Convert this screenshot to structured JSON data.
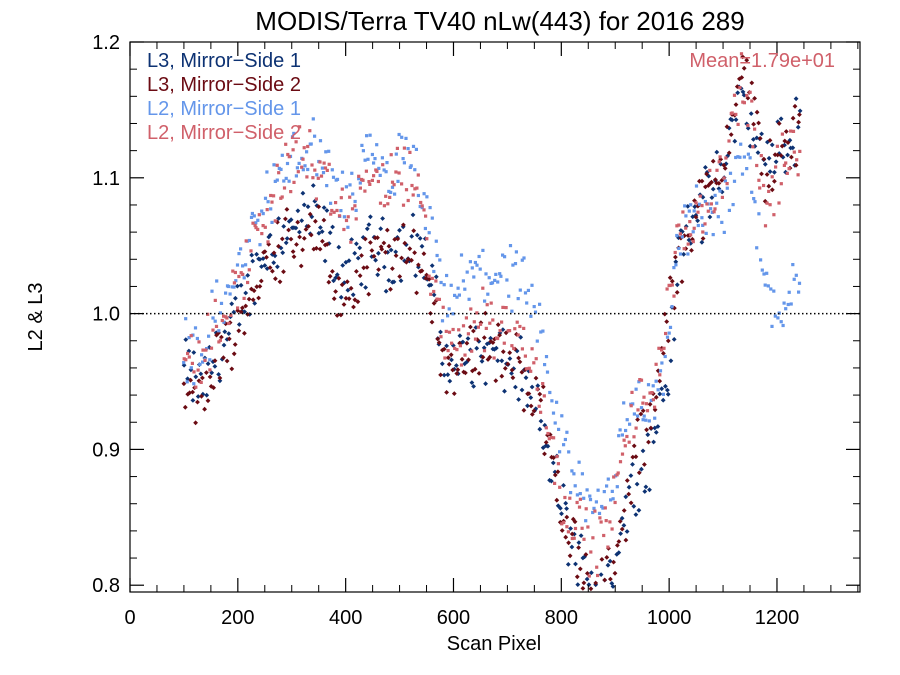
{
  "chart_data": {
    "type": "scatter",
    "title": "MODIS/Terra TV40 nLw(443) for 2016 289",
    "xlabel": "Scan Pixel",
    "ylabel": "L2 & L3",
    "xlim": [
      0,
      1354
    ],
    "ylim": [
      0.795,
      1.2
    ],
    "x_ticks": [
      0,
      200,
      400,
      600,
      800,
      1000,
      1200
    ],
    "x_tick_labels": [
      "0",
      "200",
      "400",
      "600",
      "800",
      "1000",
      "1200"
    ],
    "y_ticks": [
      0.8,
      0.9,
      1.0,
      1.1,
      1.2
    ],
    "y_tick_labels": [
      "0.8",
      "0.9",
      "1.0",
      "1.1",
      "1.2"
    ],
    "reference_line": 1.0,
    "annotation": "Mean=1.79e+01",
    "annotation_color": "#d0606a",
    "legend_position": "top-left",
    "series": [
      {
        "name": "L3, Mirror−Side 1",
        "color": "#0d3273",
        "marker": "diamond",
        "x": [
          100,
          120,
          140,
          160,
          180,
          200,
          220,
          240,
          260,
          280,
          300,
          320,
          340,
          360,
          380,
          400,
          420,
          440,
          460,
          480,
          500,
          520,
          540,
          560,
          580,
          600,
          620,
          640,
          660,
          680,
          700,
          720,
          740,
          760,
          780,
          800,
          820,
          840,
          860,
          880,
          900,
          920,
          940,
          960,
          980,
          1000,
          1020,
          1040,
          1060,
          1080,
          1100,
          1120,
          1140,
          1160,
          1180,
          1200,
          1220,
          1240
        ],
        "y": [
          0.96,
          0.95,
          0.95,
          0.97,
          0.98,
          1.0,
          1.02,
          1.04,
          1.05,
          1.06,
          1.06,
          1.07,
          1.07,
          1.06,
          1.04,
          1.03,
          1.03,
          1.05,
          1.05,
          1.04,
          1.05,
          1.05,
          1.05,
          1.02,
          0.97,
          0.96,
          0.97,
          0.97,
          0.97,
          0.97,
          0.96,
          0.96,
          0.94,
          0.92,
          0.89,
          0.86,
          0.83,
          0.81,
          0.8,
          0.8,
          0.81,
          0.86,
          0.88,
          0.89,
          0.92,
          0.96,
          1.05,
          1.07,
          1.08,
          1.09,
          1.1,
          1.15,
          1.16,
          1.12,
          1.11,
          1.13,
          1.12,
          1.14
        ]
      },
      {
        "name": "L3, Mirror−Side 2",
        "color": "#6b0b13",
        "marker": "diamond",
        "x": [
          100,
          120,
          140,
          160,
          180,
          200,
          220,
          240,
          260,
          280,
          300,
          320,
          340,
          360,
          380,
          400,
          420,
          440,
          460,
          480,
          500,
          520,
          540,
          560,
          580,
          600,
          620,
          640,
          660,
          680,
          700,
          720,
          740,
          760,
          780,
          800,
          820,
          840,
          860,
          880,
          900,
          920,
          940,
          960,
          980,
          1000,
          1020,
          1040,
          1060,
          1080,
          1100,
          1120,
          1140,
          1160,
          1180,
          1200,
          1220,
          1240
        ],
        "y": [
          0.95,
          0.93,
          0.94,
          0.96,
          0.98,
          0.99,
          1.01,
          1.03,
          1.04,
          1.05,
          1.06,
          1.06,
          1.06,
          1.05,
          1.02,
          1.0,
          1.02,
          1.04,
          1.04,
          1.04,
          1.04,
          1.04,
          1.04,
          1.01,
          0.97,
          0.96,
          0.97,
          0.98,
          0.98,
          0.97,
          0.97,
          0.96,
          0.95,
          0.93,
          0.9,
          0.86,
          0.83,
          0.81,
          0.8,
          0.8,
          0.81,
          0.86,
          0.9,
          0.91,
          0.95,
          1.0,
          1.04,
          1.07,
          1.08,
          1.09,
          1.11,
          1.16,
          1.18,
          1.14,
          1.1,
          1.12,
          1.12,
          1.14
        ]
      },
      {
        "name": "L2, Mirror−Side 1",
        "color": "#6496ea",
        "marker": "square",
        "x": [
          100,
          120,
          140,
          160,
          180,
          200,
          220,
          240,
          260,
          280,
          300,
          320,
          340,
          360,
          380,
          400,
          420,
          440,
          460,
          480,
          500,
          520,
          540,
          560,
          580,
          600,
          620,
          640,
          660,
          680,
          700,
          720,
          740,
          760,
          780,
          800,
          820,
          840,
          860,
          880,
          900,
          920,
          940,
          960,
          980,
          1000,
          1020,
          1040,
          1060,
          1080,
          1100,
          1120,
          1140,
          1160,
          1180,
          1200,
          1220,
          1240
        ],
        "y": [
          0.98,
          0.97,
          0.98,
          1.0,
          1.01,
          1.03,
          1.05,
          1.07,
          1.09,
          1.1,
          1.11,
          1.12,
          1.12,
          1.11,
          1.09,
          1.08,
          1.09,
          1.11,
          1.11,
          1.1,
          1.11,
          1.11,
          1.09,
          1.05,
          1.01,
          1.01,
          1.02,
          1.03,
          1.03,
          1.03,
          1.03,
          1.02,
          1.01,
          0.98,
          0.94,
          0.91,
          0.88,
          0.87,
          0.86,
          0.87,
          0.88,
          0.92,
          0.94,
          0.93,
          0.94,
          0.98,
          1.06,
          1.07,
          1.07,
          1.08,
          1.08,
          1.1,
          1.12,
          1.08,
          1.02,
          1.0,
          1.02,
          1.03
        ]
      },
      {
        "name": "L2, Mirror−Side 2",
        "color": "#d0606a",
        "marker": "square",
        "x": [
          100,
          120,
          140,
          160,
          180,
          200,
          220,
          240,
          260,
          280,
          300,
          320,
          340,
          360,
          380,
          400,
          420,
          440,
          460,
          480,
          500,
          520,
          540,
          560,
          580,
          600,
          620,
          640,
          660,
          680,
          700,
          720,
          740,
          760,
          780,
          800,
          820,
          840,
          860,
          880,
          900,
          920,
          940,
          960,
          980,
          1000,
          1020,
          1040,
          1060,
          1080,
          1100,
          1120,
          1140,
          1160,
          1180,
          1200,
          1220,
          1240
        ],
        "y": [
          0.97,
          0.96,
          0.97,
          0.99,
          1.01,
          1.02,
          1.04,
          1.06,
          1.08,
          1.1,
          1.11,
          1.12,
          1.11,
          1.09,
          1.08,
          1.07,
          1.08,
          1.1,
          1.1,
          1.09,
          1.1,
          1.1,
          1.08,
          1.03,
          0.98,
          0.98,
          0.99,
          0.99,
          1.0,
          0.99,
          0.99,
          0.98,
          0.97,
          0.95,
          0.91,
          0.87,
          0.85,
          0.84,
          0.83,
          0.84,
          0.86,
          0.91,
          0.93,
          0.94,
          0.96,
          1.01,
          1.05,
          1.07,
          1.08,
          1.09,
          1.1,
          1.15,
          1.17,
          1.12,
          1.08,
          1.1,
          1.11,
          1.13
        ]
      }
    ]
  }
}
